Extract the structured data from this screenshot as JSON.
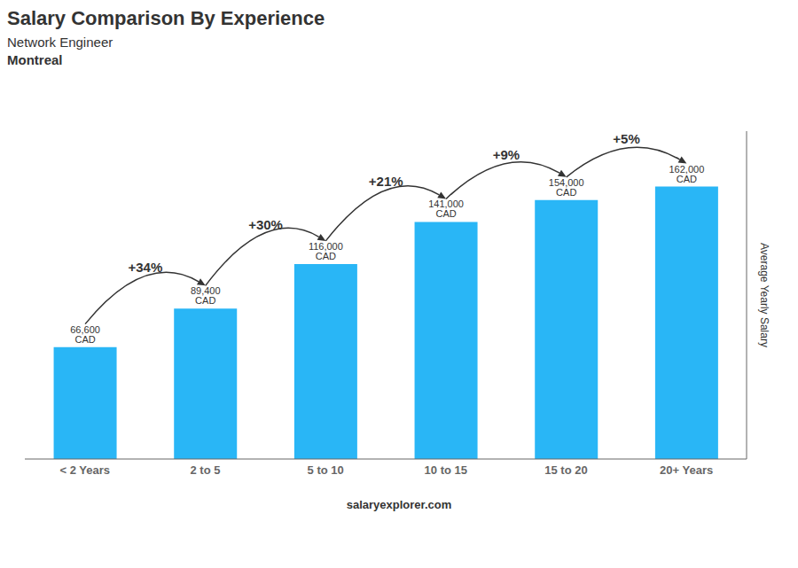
{
  "chart_data": {
    "type": "bar",
    "title": "Salary Comparison By Experience",
    "subtitle": [
      "Network Engineer",
      "Montreal"
    ],
    "ylabel": "Average Yearly Salary",
    "footer": "salaryexplorer.com",
    "categories": [
      "< 2 Years",
      "2 to 5",
      "5 to 10",
      "10 to 15",
      "15 to 20",
      "20+ Years"
    ],
    "values": [
      66600,
      89400,
      116000,
      141000,
      154000,
      162000
    ],
    "value_labels": [
      "66,600 CAD",
      "89,400 CAD",
      "116,000 CAD",
      "141,000 CAD",
      "154,000 CAD",
      "162,000 CAD"
    ],
    "data_labels": true,
    "annotations": [
      "+34%",
      "+30%",
      "+21%",
      "+9%",
      "+5%"
    ],
    "color": "#29b6f6",
    "ylim": [
      0,
      195000
    ],
    "grid": false,
    "tick_labels": "x"
  }
}
